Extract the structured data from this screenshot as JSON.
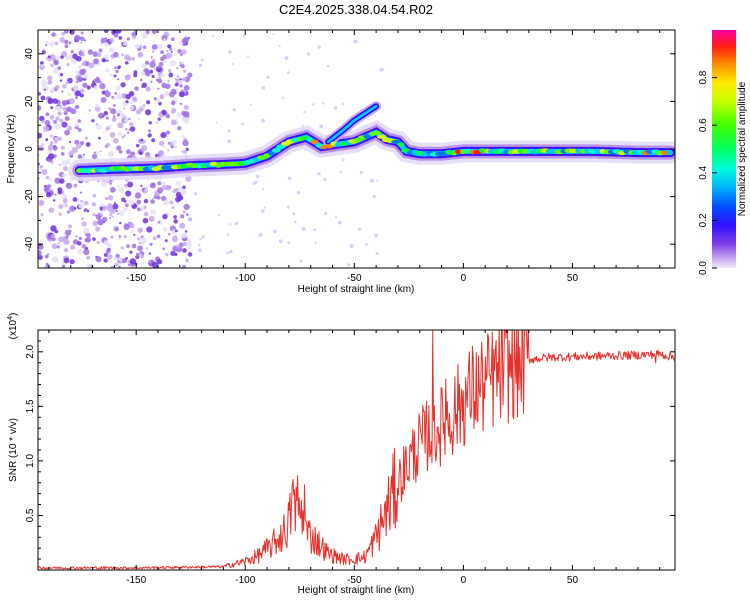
{
  "title": "C2E4.2025.338.04.54.R02",
  "colors": {
    "snr_line": "#e8302a",
    "spectrogram_palette": [
      "#e8e0f8",
      "#c8a8f0",
      "#a070e8",
      "#7030e0",
      "#3a10ff",
      "#0000ff",
      "#0078ff",
      "#00c8ff",
      "#00ffc0",
      "#00ff40",
      "#60ff00",
      "#d0ff00",
      "#ffe000",
      "#ff8000",
      "#ff2000",
      "#ff00a0"
    ]
  },
  "chart_data": [
    {
      "type": "heatmap",
      "name": "spectrogram",
      "title": "",
      "xlabel": "Height of straight line (km)",
      "ylabel": "Frequency (Hz)",
      "xlim": [
        -195,
        97
      ],
      "ylim": [
        -50,
        50
      ],
      "xticks": [
        -150,
        -100,
        -50,
        0,
        50
      ],
      "yticks": [
        -40,
        -20,
        0,
        20,
        40
      ],
      "ridge": {
        "description": "main frequency ridge center (Hz) vs height (km)",
        "x": [
          -176,
          -160,
          -140,
          -125,
          -110,
          -100,
          -90,
          -80,
          -72,
          -65,
          -58,
          -50,
          -45,
          -40,
          -35,
          -30,
          -26,
          -20,
          -10,
          0,
          10,
          20,
          40,
          60,
          80,
          95
        ],
        "y": [
          -9,
          -8.5,
          -8,
          -7,
          -6.5,
          -6,
          -3,
          3,
          5,
          1,
          2,
          3,
          5,
          7,
          4,
          3,
          -1,
          -2,
          -2,
          -1,
          -1,
          -1,
          -1,
          -1,
          -1.5,
          -1.5
        ]
      },
      "upper_branch": {
        "x": [
          -62,
          -55,
          -50,
          -45,
          -40
        ],
        "y": [
          3,
          8,
          12,
          15,
          18
        ]
      },
      "colorbar": {
        "label": "Normalized spectral amplitude",
        "range": [
          0.0,
          1.0
        ],
        "ticks": [
          0.0,
          0.2,
          0.4,
          0.6,
          0.8
        ]
      }
    },
    {
      "type": "line",
      "name": "snr",
      "title": "",
      "xlabel": "Height of straight line (km)",
      "ylabel": "SNR (10 * v/v)",
      "scale_label": "(x10",
      "scale_exponent": "4",
      "scale_close": ")",
      "xlim": [
        -195,
        97
      ],
      "ylim": [
        0,
        2.2
      ],
      "xticks": [
        -150,
        -100,
        -50,
        0,
        50
      ],
      "yticks": [
        0.5,
        1.0,
        1.5,
        2.0
      ],
      "ytick_labels": [
        "0.5",
        "1.0",
        "1.5",
        "2.0"
      ],
      "envelope": {
        "description": "approximate SNR envelope (x10^4) vs height (km)",
        "x": [
          -195,
          -150,
          -110,
          -100,
          -95,
          -88,
          -82,
          -78,
          -76,
          -72,
          -68,
          -62,
          -55,
          -50,
          -45,
          -40,
          -35,
          -30,
          -25,
          -20,
          -16,
          -14,
          -12,
          -8,
          -4,
          0,
          5,
          10,
          15,
          20,
          25,
          30,
          40,
          60,
          80,
          90,
          97
        ],
        "y": [
          0.02,
          0.02,
          0.03,
          0.08,
          0.12,
          0.22,
          0.35,
          0.55,
          0.6,
          0.35,
          0.28,
          0.15,
          0.1,
          0.1,
          0.12,
          0.3,
          0.55,
          0.8,
          1.0,
          1.15,
          1.25,
          1.3,
          1.3,
          1.35,
          1.45,
          1.55,
          1.65,
          1.7,
          1.78,
          1.85,
          1.9,
          1.93,
          1.95,
          1.96,
          1.97,
          1.98,
          1.95
        ]
      },
      "spikes": {
        "x": [
          -78,
          -73,
          -14,
          -8,
          88
        ],
        "y": [
          0.83,
          0.78,
          2.2,
          1.75,
          1.9
        ]
      }
    }
  ]
}
